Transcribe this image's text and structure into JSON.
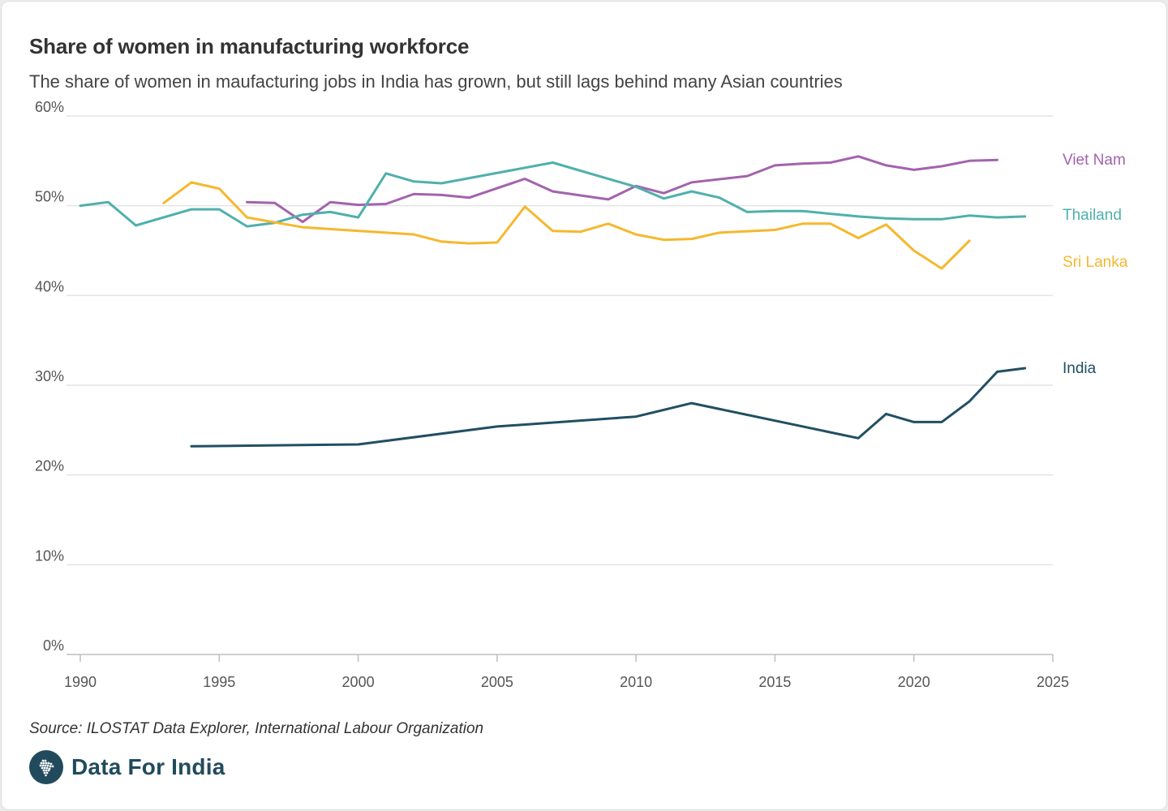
{
  "header": {
    "title": "Share of women in manufacturing workforce",
    "subtitle": "The share of women in maufacturing jobs in India has grown, but still lags behind many Asian countries"
  },
  "footer": {
    "source": "Source: ILOSTAT Data Explorer, International Labour Organization",
    "brand": "Data For India",
    "logo_icon": "india-map-icon"
  },
  "chart_data": {
    "type": "line",
    "title": "Share of women in manufacturing workforce",
    "subtitle": "The share of women in maufacturing jobs in India has grown, but still lags behind many Asian countries",
    "xlabel": "",
    "ylabel": "",
    "xlim": [
      1990,
      2025
    ],
    "ylim": [
      0,
      60
    ],
    "x_ticks": [
      1990,
      1995,
      2000,
      2005,
      2010,
      2015,
      2020,
      2025
    ],
    "x_tick_labels": [
      "1990",
      "1995",
      "2000",
      "2005",
      "2010",
      "2015",
      "2020",
      "2025"
    ],
    "y_ticks": [
      0,
      10,
      20,
      30,
      40,
      50,
      60
    ],
    "y_tick_labels": [
      "0%",
      "10%",
      "20%",
      "30%",
      "40%",
      "50%",
      "60%"
    ],
    "grid": true,
    "legend": "direct labels at right end of lines",
    "series": [
      {
        "name": "Viet Nam",
        "color": "#a363ad",
        "points": [
          [
            1996,
            50.4
          ],
          [
            1997,
            50.3
          ],
          [
            1998,
            48.2
          ],
          [
            1999,
            50.4
          ],
          [
            2000,
            50.1
          ],
          [
            2001,
            50.2
          ],
          [
            2002,
            51.3
          ],
          [
            2003,
            51.2
          ],
          [
            2004,
            50.9
          ],
          [
            2006,
            53.0
          ],
          [
            2007,
            51.6
          ],
          [
            2009,
            50.7
          ],
          [
            2010,
            52.2
          ],
          [
            2011,
            51.4
          ],
          [
            2012,
            52.6
          ],
          [
            2014,
            53.3
          ],
          [
            2015,
            54.5
          ],
          [
            2016,
            54.7
          ],
          [
            2017,
            54.8
          ],
          [
            2018,
            55.5
          ],
          [
            2019,
            54.5
          ],
          [
            2020,
            54.0
          ],
          [
            2021,
            54.4
          ],
          [
            2022,
            55.0
          ],
          [
            2023,
            55.1
          ]
        ]
      },
      {
        "name": "Thailand",
        "color": "#4fb0ac",
        "points": [
          [
            1990,
            50.0
          ],
          [
            1991,
            50.4
          ],
          [
            1992,
            47.8
          ],
          [
            1994,
            49.6
          ],
          [
            1995,
            49.6
          ],
          [
            1996,
            47.7
          ],
          [
            1997,
            48.1
          ],
          [
            1998,
            49.0
          ],
          [
            1999,
            49.3
          ],
          [
            2000,
            48.7
          ],
          [
            2001,
            53.6
          ],
          [
            2002,
            52.7
          ],
          [
            2003,
            52.5
          ],
          [
            2007,
            54.8
          ],
          [
            2010,
            52.1
          ],
          [
            2011,
            50.8
          ],
          [
            2012,
            51.6
          ],
          [
            2013,
            50.9
          ],
          [
            2014,
            49.3
          ],
          [
            2015,
            49.4
          ],
          [
            2016,
            49.4
          ],
          [
            2018,
            48.8
          ],
          [
            2019,
            48.6
          ],
          [
            2020,
            48.5
          ],
          [
            2021,
            48.5
          ],
          [
            2022,
            48.9
          ],
          [
            2023,
            48.7
          ],
          [
            2024,
            48.8
          ]
        ]
      },
      {
        "name": "Sri Lanka",
        "color": "#f5b82e",
        "points": [
          [
            1993,
            50.3
          ],
          [
            1994,
            52.6
          ],
          [
            1995,
            51.9
          ],
          [
            1996,
            48.7
          ],
          [
            1998,
            47.6
          ],
          [
            2002,
            46.8
          ],
          [
            2003,
            46.0
          ],
          [
            2004,
            45.8
          ],
          [
            2005,
            45.9
          ],
          [
            2006,
            49.9
          ],
          [
            2007,
            47.2
          ],
          [
            2008,
            47.1
          ],
          [
            2009,
            48.0
          ],
          [
            2010,
            46.8
          ],
          [
            2011,
            46.2
          ],
          [
            2012,
            46.3
          ],
          [
            2013,
            47.0
          ],
          [
            2015,
            47.3
          ],
          [
            2016,
            48.0
          ],
          [
            2017,
            48.0
          ],
          [
            2018,
            46.4
          ],
          [
            2019,
            47.9
          ],
          [
            2020,
            45.0
          ],
          [
            2021,
            43.0
          ],
          [
            2022,
            46.1
          ]
        ]
      },
      {
        "name": "India",
        "color": "#214f62",
        "points": [
          [
            1994,
            23.2
          ],
          [
            2000,
            23.4
          ],
          [
            2005,
            25.4
          ],
          [
            2010,
            26.5
          ],
          [
            2012,
            28.0
          ],
          [
            2018,
            24.1
          ],
          [
            2019,
            26.8
          ],
          [
            2020,
            25.9
          ],
          [
            2021,
            25.9
          ],
          [
            2022,
            28.2
          ],
          [
            2023,
            31.5
          ],
          [
            2024,
            31.9
          ]
        ]
      }
    ]
  }
}
